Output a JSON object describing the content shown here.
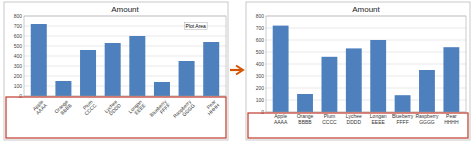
{
  "chart_data": [
    {
      "type": "bar",
      "title": "Amount",
      "categories": [
        "Apple\nAAAA",
        "Orange\nBBBB",
        "Plum\nCCCC",
        "Lychee\nDDDD",
        "Longan\nEEEE",
        "Blueberry\nFFFF",
        "Raspberry\nGGGG",
        "Pear\nHHHH"
      ],
      "values": [
        720,
        150,
        460,
        530,
        600,
        140,
        350,
        540
      ],
      "color": "#4E80BD",
      "ylim": [
        0,
        800
      ],
      "yticks": [
        0,
        100,
        200,
        300,
        400,
        500,
        600,
        700,
        800
      ],
      "grid": true,
      "annotations": [
        "Plot Area"
      ]
    },
    {
      "type": "bar",
      "title": "Amount",
      "categories": [
        "Apple\nAAAA",
        "Orange\nBBBB",
        "Plum\nCCCC",
        "Lychee\nDDDD",
        "Longan\nEEEE",
        "Blueberry\nFFFF",
        "Raspberry\nGGGG",
        "Pear\nHHHH"
      ],
      "values": [
        720,
        150,
        460,
        530,
        600,
        140,
        350,
        540
      ],
      "color": "#4E80BD",
      "ylim": [
        0,
        800
      ],
      "yticks": [
        0,
        100,
        200,
        300,
        400,
        500,
        600,
        700,
        800
      ],
      "grid": true
    }
  ]
}
